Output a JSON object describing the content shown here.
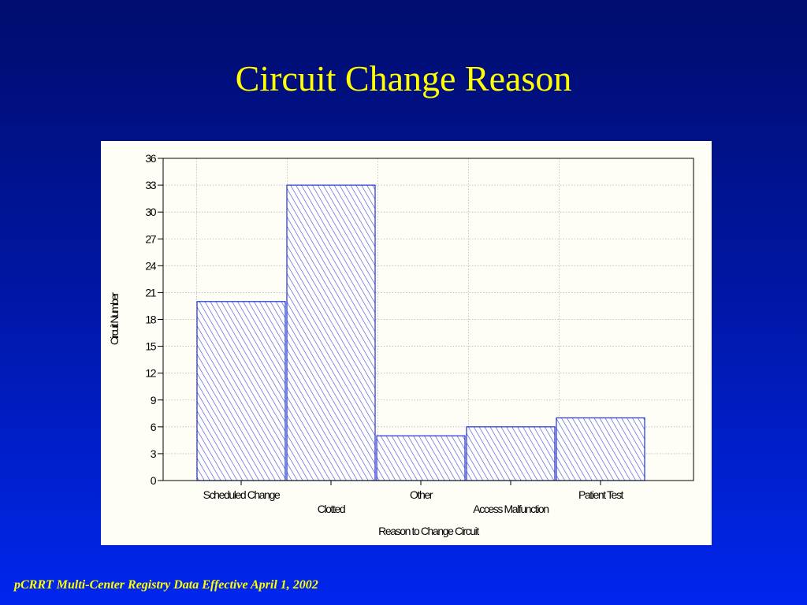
{
  "slide": {
    "title": "Circuit Change Reason",
    "footer": "pCRRT Multi-Center Registry Data Effective April 1, 2002"
  },
  "colors": {
    "title": "#ffff00",
    "footer": "#ffff00",
    "bar_outline": "#1f2fd8",
    "bar_hatch": "#3a48d0",
    "panel_background": "#fffef6"
  },
  "chart_data": {
    "type": "bar",
    "title": "",
    "xlabel": "Reason to Change Circuit",
    "ylabel": "Circuit Number",
    "categories": [
      "Scheduled Change",
      "Clotted",
      "Other",
      "Access Malfunction",
      "Patient Test"
    ],
    "values": [
      20,
      33,
      5,
      6,
      7
    ],
    "ylim": [
      0,
      36
    ],
    "yticks": [
      "0",
      "3",
      "6",
      "9",
      "12",
      "15",
      "18",
      "21",
      "24",
      "27",
      "30",
      "33",
      "36"
    ],
    "grid": true,
    "bar_fill": "diagonal hatch",
    "legend": "none"
  }
}
